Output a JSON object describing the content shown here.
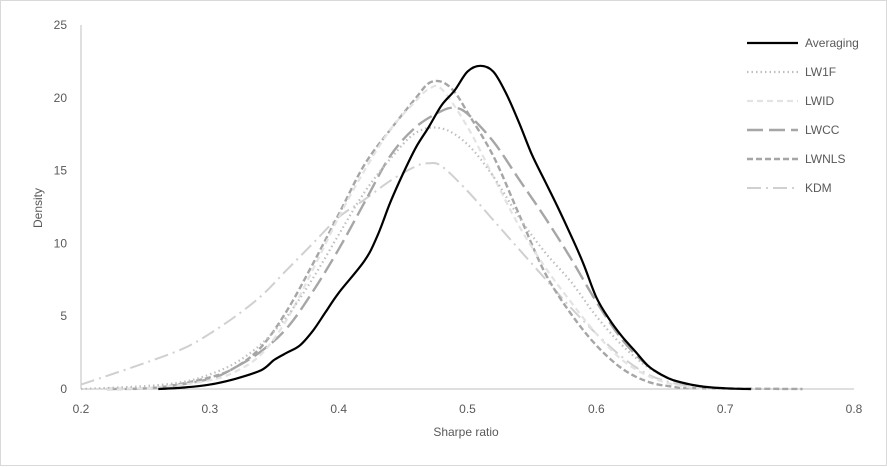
{
  "chart_data": {
    "type": "line",
    "title": "",
    "xlabel": "Sharpe ratio",
    "ylabel": "Density",
    "xlim": [
      0.2,
      0.8
    ],
    "ylim": [
      0,
      25
    ],
    "x_ticks": [
      "0.2",
      "0.3",
      "0.4",
      "0.5",
      "0.6",
      "0.7",
      "0.8"
    ],
    "y_ticks": [
      "0",
      "5",
      "10",
      "15",
      "20",
      "25"
    ],
    "grid": false,
    "legend_position": "right",
    "series": [
      {
        "name": "Averaging",
        "color": "#000000",
        "dash": "solid",
        "points": [
          [
            0.26,
            0
          ],
          [
            0.28,
            0.1
          ],
          [
            0.3,
            0.3
          ],
          [
            0.32,
            0.7
          ],
          [
            0.34,
            1.3
          ],
          [
            0.35,
            2.0
          ],
          [
            0.36,
            2.5
          ],
          [
            0.37,
            3.0
          ],
          [
            0.38,
            4.0
          ],
          [
            0.39,
            5.3
          ],
          [
            0.4,
            6.6
          ],
          [
            0.42,
            8.8
          ],
          [
            0.43,
            10.5
          ],
          [
            0.44,
            12.8
          ],
          [
            0.45,
            14.8
          ],
          [
            0.46,
            16.6
          ],
          [
            0.47,
            18.0
          ],
          [
            0.48,
            19.5
          ],
          [
            0.49,
            20.5
          ],
          [
            0.5,
            21.8
          ],
          [
            0.51,
            22.2
          ],
          [
            0.52,
            21.8
          ],
          [
            0.53,
            20.3
          ],
          [
            0.54,
            18.3
          ],
          [
            0.55,
            16.1
          ],
          [
            0.56,
            14.3
          ],
          [
            0.57,
            12.5
          ],
          [
            0.58,
            10.6
          ],
          [
            0.59,
            8.6
          ],
          [
            0.6,
            6.3
          ],
          [
            0.61,
            4.8
          ],
          [
            0.62,
            3.6
          ],
          [
            0.63,
            2.6
          ],
          [
            0.64,
            1.6
          ],
          [
            0.65,
            1.0
          ],
          [
            0.66,
            0.6
          ],
          [
            0.68,
            0.2
          ],
          [
            0.7,
            0.05
          ],
          [
            0.72,
            0
          ]
        ]
      },
      {
        "name": "LW1F",
        "color": "#bfbfbf",
        "dash": "dotted",
        "points": [
          [
            0.2,
            0
          ],
          [
            0.25,
            0.2
          ],
          [
            0.28,
            0.5
          ],
          [
            0.3,
            1.0
          ],
          [
            0.32,
            1.8
          ],
          [
            0.34,
            3.1
          ],
          [
            0.36,
            5.0
          ],
          [
            0.38,
            7.6
          ],
          [
            0.4,
            10.6
          ],
          [
            0.42,
            13.5
          ],
          [
            0.44,
            15.8
          ],
          [
            0.46,
            17.6
          ],
          [
            0.48,
            17.9
          ],
          [
            0.5,
            16.8
          ],
          [
            0.52,
            14.6
          ],
          [
            0.54,
            11.8
          ],
          [
            0.56,
            9.4
          ],
          [
            0.58,
            7.4
          ],
          [
            0.6,
            5.0
          ],
          [
            0.62,
            3.0
          ],
          [
            0.64,
            1.5
          ],
          [
            0.66,
            0.6
          ],
          [
            0.68,
            0.2
          ],
          [
            0.7,
            0.05
          ],
          [
            0.72,
            0
          ]
        ]
      },
      {
        "name": "LWID",
        "color": "#e3e3e3",
        "dash": "dashed-short",
        "points": [
          [
            0.22,
            0
          ],
          [
            0.26,
            0.1
          ],
          [
            0.3,
            0.6
          ],
          [
            0.32,
            1.2
          ],
          [
            0.34,
            2.4
          ],
          [
            0.36,
            4.8
          ],
          [
            0.38,
            8.2
          ],
          [
            0.4,
            11.8
          ],
          [
            0.42,
            15.0
          ],
          [
            0.44,
            17.8
          ],
          [
            0.46,
            19.8
          ],
          [
            0.47,
            20.6
          ],
          [
            0.48,
            20.6
          ],
          [
            0.5,
            18.0
          ],
          [
            0.52,
            14.6
          ],
          [
            0.54,
            11.2
          ],
          [
            0.56,
            8.4
          ],
          [
            0.58,
            6.0
          ],
          [
            0.6,
            3.8
          ],
          [
            0.62,
            2.0
          ],
          [
            0.64,
            0.9
          ],
          [
            0.66,
            0.3
          ],
          [
            0.68,
            0.05
          ],
          [
            0.7,
            0
          ]
        ]
      },
      {
        "name": "LWCC",
        "color": "#a6a6a6",
        "dash": "dashed-long",
        "points": [
          [
            0.22,
            0
          ],
          [
            0.26,
            0.1
          ],
          [
            0.3,
            0.7
          ],
          [
            0.32,
            1.5
          ],
          [
            0.34,
            2.6
          ],
          [
            0.36,
            4.2
          ],
          [
            0.38,
            6.7
          ],
          [
            0.4,
            9.6
          ],
          [
            0.42,
            12.8
          ],
          [
            0.44,
            16.0
          ],
          [
            0.46,
            18.0
          ],
          [
            0.48,
            19.1
          ],
          [
            0.49,
            19.3
          ],
          [
            0.5,
            18.9
          ],
          [
            0.52,
            17.0
          ],
          [
            0.54,
            14.4
          ],
          [
            0.56,
            11.8
          ],
          [
            0.58,
            9.0
          ],
          [
            0.6,
            6.0
          ],
          [
            0.62,
            3.4
          ],
          [
            0.64,
            1.6
          ],
          [
            0.66,
            0.6
          ],
          [
            0.68,
            0.2
          ],
          [
            0.7,
            0.05
          ],
          [
            0.72,
            0
          ]
        ]
      },
      {
        "name": "LWNLS",
        "color": "#a6a6a6",
        "dash": "dashed-medium",
        "points": [
          [
            0.22,
            0
          ],
          [
            0.26,
            0.1
          ],
          [
            0.3,
            0.8
          ],
          [
            0.32,
            1.5
          ],
          [
            0.34,
            2.9
          ],
          [
            0.36,
            5.4
          ],
          [
            0.38,
            8.6
          ],
          [
            0.4,
            12.0
          ],
          [
            0.42,
            15.4
          ],
          [
            0.44,
            17.8
          ],
          [
            0.46,
            20.0
          ],
          [
            0.47,
            21.0
          ],
          [
            0.48,
            21.1
          ],
          [
            0.49,
            20.4
          ],
          [
            0.5,
            19.0
          ],
          [
            0.52,
            16.0
          ],
          [
            0.54,
            12.0
          ],
          [
            0.56,
            8.0
          ],
          [
            0.58,
            5.2
          ],
          [
            0.6,
            3.0
          ],
          [
            0.62,
            1.4
          ],
          [
            0.64,
            0.5
          ],
          [
            0.66,
            0.15
          ],
          [
            0.68,
            0.05
          ],
          [
            0.76,
            0
          ]
        ]
      },
      {
        "name": "KDM",
        "color": "#d0d0d0",
        "dash": "dash-dot",
        "points": [
          [
            0.2,
            0.3
          ],
          [
            0.22,
            0.9
          ],
          [
            0.25,
            1.8
          ],
          [
            0.28,
            2.8
          ],
          [
            0.3,
            3.8
          ],
          [
            0.32,
            5.0
          ],
          [
            0.34,
            6.4
          ],
          [
            0.36,
            8.2
          ],
          [
            0.38,
            10.0
          ],
          [
            0.4,
            11.8
          ],
          [
            0.42,
            13.0
          ],
          [
            0.44,
            14.3
          ],
          [
            0.46,
            15.3
          ],
          [
            0.47,
            15.5
          ],
          [
            0.48,
            15.3
          ],
          [
            0.5,
            13.6
          ],
          [
            0.52,
            11.6
          ],
          [
            0.54,
            9.6
          ],
          [
            0.56,
            7.6
          ],
          [
            0.58,
            5.6
          ],
          [
            0.6,
            3.8
          ],
          [
            0.62,
            2.2
          ],
          [
            0.64,
            1.0
          ],
          [
            0.66,
            0.4
          ],
          [
            0.68,
            0.1
          ],
          [
            0.7,
            0
          ]
        ]
      }
    ]
  }
}
